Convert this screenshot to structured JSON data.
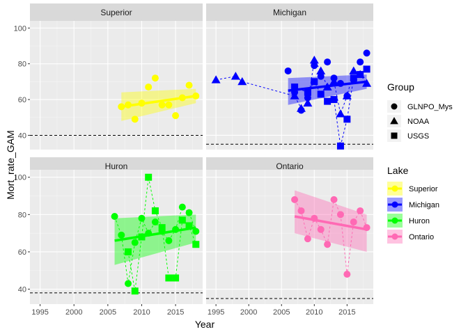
{
  "chart_data": {
    "type": "scatter",
    "xlabel": "Year",
    "ylabel": "Mort_rate_GAM",
    "xlim": [
      1993.5,
      2019
    ],
    "ylim": [
      32,
      104
    ],
    "x_ticks": [
      1995,
      2000,
      2005,
      2010,
      2015
    ],
    "y_ticks": [
      40,
      60,
      80,
      100
    ],
    "grid": true,
    "legend_position": "right",
    "legend_group": {
      "title": "Group",
      "entries": [
        {
          "label": "GLNPO_Mys",
          "shape": "circle"
        },
        {
          "label": "NOAA",
          "shape": "triangle"
        },
        {
          "label": "USGS",
          "shape": "square"
        }
      ]
    },
    "legend_lake": {
      "title": "Lake",
      "entries": [
        {
          "label": "Superior",
          "color": "#FFFF00"
        },
        {
          "label": "Michigan",
          "color": "#0000FF"
        },
        {
          "label": "Huron",
          "color": "#00FF00"
        },
        {
          "label": "Ontario",
          "color": "#FF69B4"
        }
      ]
    },
    "panels": [
      {
        "title": "Superior",
        "color": "#FFFF00",
        "hline": 40,
        "trend": {
          "x": [
            2007,
            2018
          ],
          "y": [
            56,
            62
          ]
        },
        "ribbon": {
          "upper": [
            64,
            66
          ],
          "lower": [
            48,
            58
          ]
        },
        "connect": [],
        "points": [
          {
            "x": 2007,
            "y": 56,
            "group": "GLNPO_Mys"
          },
          {
            "x": 2008,
            "y": 57,
            "group": "GLNPO_Mys"
          },
          {
            "x": 2009,
            "y": 49,
            "group": "GLNPO_Mys"
          },
          {
            "x": 2010,
            "y": 58,
            "group": "GLNPO_Mys"
          },
          {
            "x": 2011,
            "y": 67,
            "group": "GLNPO_Mys"
          },
          {
            "x": 2012,
            "y": 72,
            "group": "GLNPO_Mys"
          },
          {
            "x": 2013,
            "y": 57,
            "group": "GLNPO_Mys"
          },
          {
            "x": 2014,
            "y": 57,
            "group": "GLNPO_Mys"
          },
          {
            "x": 2015,
            "y": 51,
            "group": "GLNPO_Mys"
          },
          {
            "x": 2016,
            "y": 61,
            "group": "GLNPO_Mys"
          },
          {
            "x": 2017,
            "y": 68,
            "group": "GLNPO_Mys"
          },
          {
            "x": 2018,
            "y": 62,
            "group": "GLNPO_Mys"
          }
        ]
      },
      {
        "title": "Michigan",
        "color": "#0000FF",
        "hline": 35,
        "trend": {
          "x": [
            2006,
            2018
          ],
          "y": [
            65,
            70
          ]
        },
        "ribbon": {
          "upper": [
            72,
            74
          ],
          "lower": [
            57,
            66
          ]
        },
        "connect": [
          "NOAA",
          "USGS"
        ],
        "points": [
          {
            "x": 2006,
            "y": 76,
            "group": "GLNPO_Mys"
          },
          {
            "x": 2007,
            "y": 64,
            "group": "GLNPO_Mys"
          },
          {
            "x": 2008,
            "y": 54,
            "group": "GLNPO_Mys"
          },
          {
            "x": 2009,
            "y": 61,
            "group": "GLNPO_Mys"
          },
          {
            "x": 2010,
            "y": 79,
            "group": "GLNPO_Mys"
          },
          {
            "x": 2011,
            "y": 73,
            "group": "GLNPO_Mys"
          },
          {
            "x": 2012,
            "y": 81,
            "group": "GLNPO_Mys"
          },
          {
            "x": 2013,
            "y": 72,
            "group": "GLNPO_Mys"
          },
          {
            "x": 2014,
            "y": 69,
            "group": "GLNPO_Mys"
          },
          {
            "x": 2015,
            "y": 62,
            "group": "GLNPO_Mys"
          },
          {
            "x": 2016,
            "y": 71,
            "group": "GLNPO_Mys"
          },
          {
            "x": 2017,
            "y": 81,
            "group": "GLNPO_Mys"
          },
          {
            "x": 2018,
            "y": 86,
            "group": "GLNPO_Mys"
          },
          {
            "x": 1995,
            "y": 71,
            "group": "NOAA"
          },
          {
            "x": 1998,
            "y": 73,
            "group": "NOAA"
          },
          {
            "x": 1999,
            "y": 70,
            "group": "NOAA"
          },
          {
            "x": 2007,
            "y": 62,
            "group": "NOAA"
          },
          {
            "x": 2008,
            "y": 55,
            "group": "NOAA"
          },
          {
            "x": 2009,
            "y": 58,
            "group": "NOAA"
          },
          {
            "x": 2010,
            "y": 82,
            "group": "NOAA"
          },
          {
            "x": 2011,
            "y": 76,
            "group": "NOAA"
          },
          {
            "x": 2012,
            "y": 67,
            "group": "NOAA"
          },
          {
            "x": 2013,
            "y": 70,
            "group": "NOAA"
          },
          {
            "x": 2014,
            "y": 52,
            "group": "NOAA"
          },
          {
            "x": 2015,
            "y": 62,
            "group": "NOAA"
          },
          {
            "x": 2016,
            "y": 76,
            "group": "NOAA"
          },
          {
            "x": 2017,
            "y": 74,
            "group": "NOAA"
          },
          {
            "x": 2018,
            "y": 69,
            "group": "NOAA"
          },
          {
            "x": 2007,
            "y": 67,
            "group": "USGS"
          },
          {
            "x": 2009,
            "y": 64,
            "group": "USGS"
          },
          {
            "x": 2010,
            "y": 70,
            "group": "USGS"
          },
          {
            "x": 2011,
            "y": 63,
            "group": "USGS"
          },
          {
            "x": 2012,
            "y": 59,
            "group": "USGS"
          },
          {
            "x": 2013,
            "y": 60,
            "group": "USGS"
          },
          {
            "x": 2014,
            "y": 34,
            "group": "USGS"
          },
          {
            "x": 2015,
            "y": 49,
            "group": "USGS"
          },
          {
            "x": 2016,
            "y": 72,
            "group": "USGS"
          },
          {
            "x": 2017,
            "y": 74,
            "group": "USGS"
          },
          {
            "x": 2018,
            "y": 77,
            "group": "USGS"
          }
        ]
      },
      {
        "title": "Huron",
        "color": "#00FF00",
        "hline": 38,
        "trend": {
          "x": [
            2006,
            2018
          ],
          "y": [
            66,
            73
          ]
        },
        "ribbon": {
          "upper": [
            78,
            80
          ],
          "lower": [
            53,
            65
          ]
        },
        "connect": [
          "GLNPO_Mys",
          "USGS"
        ],
        "points": [
          {
            "x": 2006,
            "y": 79,
            "group": "GLNPO_Mys"
          },
          {
            "x": 2007,
            "y": 69,
            "group": "GLNPO_Mys"
          },
          {
            "x": 2008,
            "y": 43,
            "group": "GLNPO_Mys"
          },
          {
            "x": 2009,
            "y": 65,
            "group": "GLNPO_Mys"
          },
          {
            "x": 2010,
            "y": 78,
            "group": "GLNPO_Mys"
          },
          {
            "x": 2011,
            "y": 70,
            "group": "GLNPO_Mys"
          },
          {
            "x": 2012,
            "y": 76,
            "group": "GLNPO_Mys"
          },
          {
            "x": 2013,
            "y": 71,
            "group": "GLNPO_Mys"
          },
          {
            "x": 2014,
            "y": 66,
            "group": "GLNPO_Mys"
          },
          {
            "x": 2015,
            "y": 72,
            "group": "GLNPO_Mys"
          },
          {
            "x": 2016,
            "y": 84,
            "group": "GLNPO_Mys"
          },
          {
            "x": 2017,
            "y": 81,
            "group": "GLNPO_Mys"
          },
          {
            "x": 2018,
            "y": 71,
            "group": "GLNPO_Mys"
          },
          {
            "x": 2008,
            "y": 60,
            "group": "USGS"
          },
          {
            "x": 2009,
            "y": 39,
            "group": "USGS"
          },
          {
            "x": 2010,
            "y": 68,
            "group": "USGS"
          },
          {
            "x": 2011,
            "y": 100,
            "group": "USGS"
          },
          {
            "x": 2012,
            "y": 82,
            "group": "USGS"
          },
          {
            "x": 2013,
            "y": 73,
            "group": "USGS"
          },
          {
            "x": 2014,
            "y": 46,
            "group": "USGS"
          },
          {
            "x": 2015,
            "y": 46,
            "group": "USGS"
          },
          {
            "x": 2016,
            "y": 77,
            "group": "USGS"
          },
          {
            "x": 2017,
            "y": 74,
            "group": "USGS"
          },
          {
            "x": 2018,
            "y": 64,
            "group": "USGS"
          }
        ]
      },
      {
        "title": "Ontario",
        "color": "#FF69B4",
        "hline": 35,
        "trend": {
          "x": [
            2007,
            2018
          ],
          "y": [
            79,
            72
          ]
        },
        "ribbon": {
          "upper": [
            93,
            80
          ],
          "lower": [
            70,
            60
          ]
        },
        "connect": [
          "GLNPO_Mys"
        ],
        "points": [
          {
            "x": 2007,
            "y": 88,
            "group": "GLNPO_Mys"
          },
          {
            "x": 2008,
            "y": 82,
            "group": "GLNPO_Mys"
          },
          {
            "x": 2009,
            "y": 67,
            "group": "GLNPO_Mys"
          },
          {
            "x": 2010,
            "y": 78,
            "group": "GLNPO_Mys"
          },
          {
            "x": 2011,
            "y": 72,
            "group": "GLNPO_Mys"
          },
          {
            "x": 2012,
            "y": 64,
            "group": "GLNPO_Mys"
          },
          {
            "x": 2013,
            "y": 88,
            "group": "GLNPO_Mys"
          },
          {
            "x": 2014,
            "y": 80,
            "group": "GLNPO_Mys"
          },
          {
            "x": 2015,
            "y": 48,
            "group": "GLNPO_Mys"
          },
          {
            "x": 2016,
            "y": 76,
            "group": "GLNPO_Mys"
          },
          {
            "x": 2017,
            "y": 82,
            "group": "GLNPO_Mys"
          },
          {
            "x": 2018,
            "y": 73,
            "group": "GLNPO_Mys"
          }
        ]
      }
    ]
  }
}
